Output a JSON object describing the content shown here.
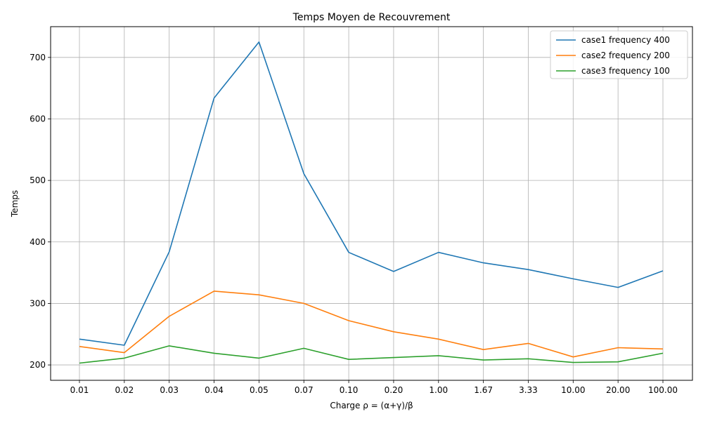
{
  "chart_data": {
    "type": "line",
    "title": "Temps Moyen de Recouvrement",
    "xlabel": "Charge ρ = (α+γ)/β",
    "ylabel": "Temps",
    "categories": [
      "0.01",
      "0.02",
      "0.03",
      "0.04",
      "0.05",
      "0.07",
      "0.10",
      "0.20",
      "1.00",
      "1.67",
      "3.33",
      "10.00",
      "20.00",
      "100.00"
    ],
    "ylim": [
      175,
      750
    ],
    "yticks": [
      200,
      300,
      400,
      500,
      600,
      700
    ],
    "grid": true,
    "legend_position": "top-right",
    "series": [
      {
        "name": "case1 frequency 400",
        "color": "#1f77b4",
        "values": [
          242,
          232,
          384,
          634,
          725,
          511,
          383,
          352,
          383,
          366,
          355,
          340,
          326,
          353
        ]
      },
      {
        "name": "case2 frequency 200",
        "color": "#ff7f0e",
        "values": [
          230,
          220,
          279,
          320,
          314,
          300,
          272,
          254,
          242,
          225,
          235,
          213,
          228,
          226
        ]
      },
      {
        "name": "case3 frequency 100",
        "color": "#2ca02c",
        "values": [
          203,
          211,
          231,
          219,
          211,
          227,
          209,
          212,
          215,
          208,
          210,
          204,
          205,
          219
        ]
      }
    ]
  }
}
